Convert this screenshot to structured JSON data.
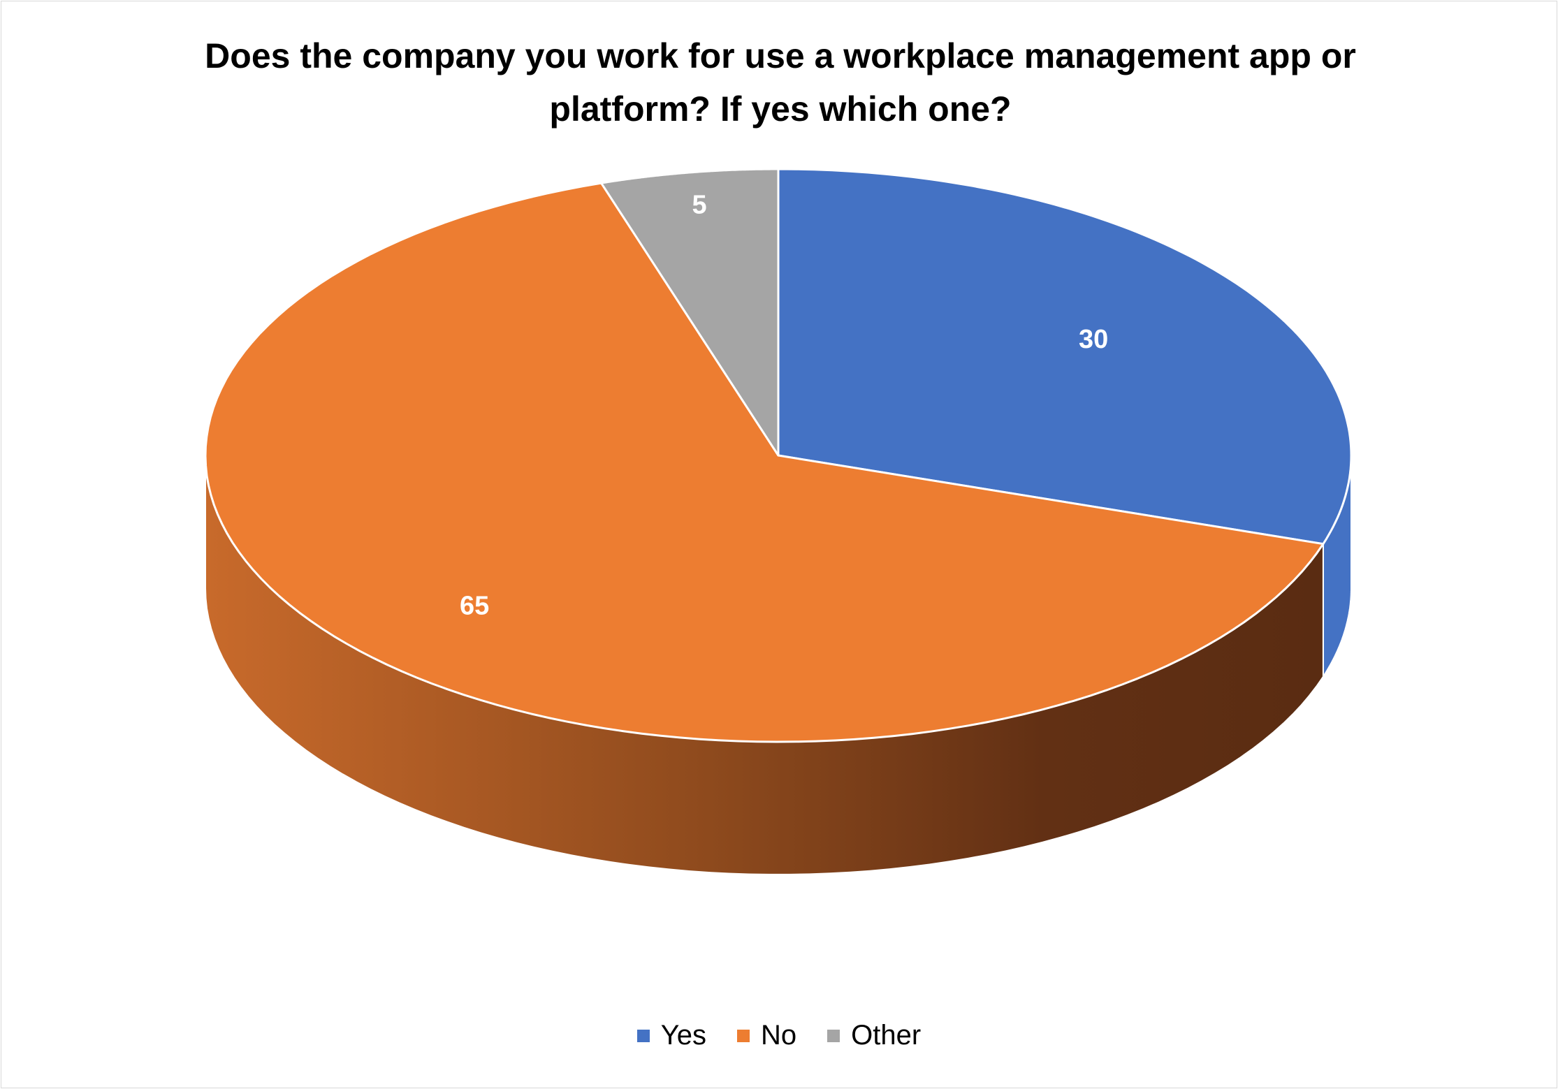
{
  "chart_data": {
    "type": "pie",
    "title": "Does the company you work for use a workplace management app or platform? If yes which one?",
    "categories": [
      "Yes",
      "No",
      "Other"
    ],
    "values": [
      30,
      65,
      5
    ],
    "colors": [
      "#4472C4",
      "#ED7D31",
      "#A5A5A5"
    ],
    "data_labels": [
      "30",
      "65",
      "5"
    ],
    "style": "3d",
    "legend_position": "bottom"
  }
}
